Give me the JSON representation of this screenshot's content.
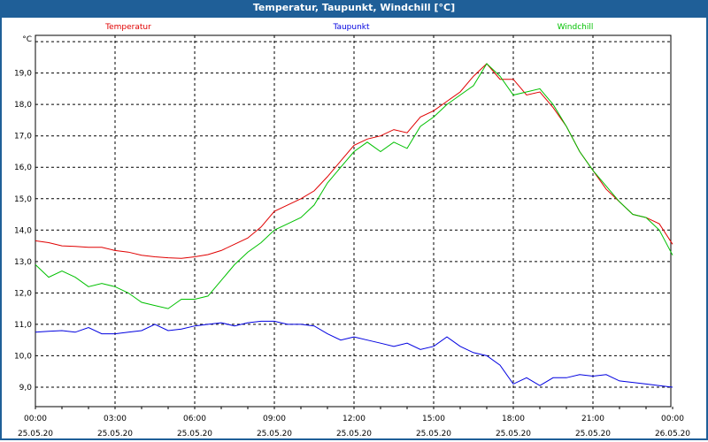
{
  "window": {
    "title": "Temperatur, Taupunkt, Windchill [°C]"
  },
  "chart_data": {
    "type": "line",
    "title": "Temperatur, Taupunkt, Windchill [°C]",
    "ylabel": "°C",
    "ylim": [
      8.38,
      20.2
    ],
    "yticks": [
      9,
      10,
      11,
      12,
      13,
      14,
      15,
      16,
      17,
      18,
      19,
      20
    ],
    "ytick_labels": [
      "9,0",
      "10,0",
      "11,0",
      "12,0",
      "13,0",
      "14,0",
      "15,0",
      "16,0",
      "17,0",
      "18,0",
      "19,0",
      ""
    ],
    "xlim_hours": [
      0,
      24
    ],
    "xticks": [
      {
        "time": "00:00",
        "date": "25.05.20"
      },
      {
        "time": "03:00",
        "date": "25.05.20"
      },
      {
        "time": "06:00",
        "date": "25.05.20"
      },
      {
        "time": "09:00",
        "date": "25.05.20"
      },
      {
        "time": "12:00",
        "date": "25.05.20"
      },
      {
        "time": "15:00",
        "date": "25.05.20"
      },
      {
        "time": "18:00",
        "date": "25.05.20"
      },
      {
        "time": "21:00",
        "date": "25.05.20"
      },
      {
        "time": "00:00",
        "date": "26.05.20"
      }
    ],
    "grid": true,
    "x_step_hours": 0.5,
    "series": [
      {
        "name": "Temperatur",
        "color": "#e00000",
        "values": [
          13.66,
          13.6,
          13.5,
          13.48,
          13.45,
          13.45,
          13.35,
          13.3,
          13.2,
          13.15,
          13.12,
          13.1,
          13.15,
          13.22,
          13.35,
          13.55,
          13.75,
          14.1,
          14.6,
          14.8,
          15.0,
          15.25,
          15.7,
          16.2,
          16.7,
          16.9,
          17.0,
          17.2,
          17.1,
          17.6,
          17.8,
          18.1,
          18.4,
          18.9,
          19.3,
          18.8,
          18.8,
          18.3,
          18.4,
          17.9,
          17.3,
          16.5,
          15.9,
          15.3,
          14.9,
          14.5,
          14.4,
          14.2,
          13.55
        ]
      },
      {
        "name": "Taupunkt",
        "color": "#0000e0",
        "values": [
          10.75,
          10.78,
          10.8,
          10.75,
          10.9,
          10.7,
          10.7,
          10.75,
          10.8,
          11.0,
          10.8,
          10.85,
          10.95,
          11.0,
          11.05,
          10.95,
          11.05,
          11.1,
          11.1,
          11.0,
          11.0,
          10.95,
          10.7,
          10.5,
          10.6,
          10.5,
          10.4,
          10.3,
          10.4,
          10.2,
          10.3,
          10.6,
          10.3,
          10.1,
          10.0,
          9.7,
          9.1,
          9.3,
          9.05,
          9.3,
          9.3,
          9.4,
          9.35,
          9.4,
          9.2,
          9.15,
          9.1,
          9.05,
          9.0
        ]
      },
      {
        "name": "Windchill",
        "color": "#00c000",
        "values": [
          12.9,
          12.5,
          12.7,
          12.5,
          12.2,
          12.3,
          12.2,
          12.0,
          11.7,
          11.6,
          11.5,
          11.8,
          11.8,
          11.9,
          12.4,
          12.9,
          13.3,
          13.6,
          14.0,
          14.2,
          14.4,
          14.8,
          15.5,
          16.0,
          16.5,
          16.8,
          16.5,
          16.8,
          16.6,
          17.3,
          17.6,
          18.0,
          18.3,
          18.6,
          19.3,
          18.9,
          18.3,
          18.4,
          18.5,
          18.0,
          17.3,
          16.5,
          15.9,
          15.4,
          14.9,
          14.5,
          14.4,
          14.0,
          13.2
        ]
      }
    ]
  }
}
